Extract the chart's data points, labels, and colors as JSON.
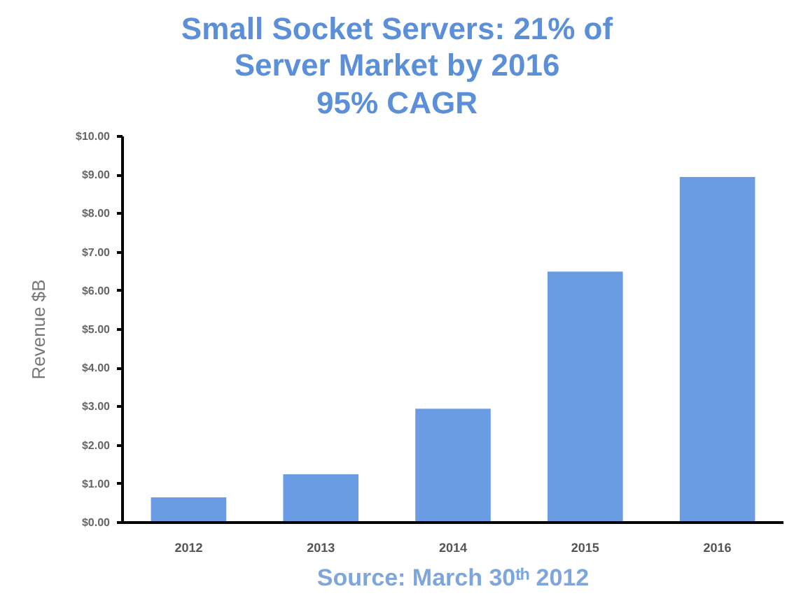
{
  "chart_data": {
    "type": "bar",
    "title": "Small Socket Servers: 21% of\nServer Market by 2016\n95% CAGR",
    "ylabel": "Revenue $B",
    "categories": [
      "2012",
      "2013",
      "2014",
      "2015",
      "2016"
    ],
    "values": [
      0.65,
      1.25,
      2.95,
      6.5,
      8.95
    ],
    "color": "#6a9ce4",
    "ylim": [
      0,
      10
    ],
    "yticks": [
      {
        "value": 0,
        "label": "$0.00"
      },
      {
        "value": 1,
        "label": "$1.00"
      },
      {
        "value": 2,
        "label": "$2.00"
      },
      {
        "value": 3,
        "label": "$3.00"
      },
      {
        "value": 4,
        "label": "$4.00"
      },
      {
        "value": 5,
        "label": "$5.00"
      },
      {
        "value": 6,
        "label": "$6.00"
      },
      {
        "value": 7,
        "label": "$7.00"
      },
      {
        "value": 8,
        "label": "$8.00"
      },
      {
        "value": 9,
        "label": "$9.00"
      },
      {
        "value": 10,
        "label": "$10.00"
      }
    ],
    "grid": false,
    "annotations": [
      "Source: March 30ᵗʰ 2012"
    ]
  }
}
